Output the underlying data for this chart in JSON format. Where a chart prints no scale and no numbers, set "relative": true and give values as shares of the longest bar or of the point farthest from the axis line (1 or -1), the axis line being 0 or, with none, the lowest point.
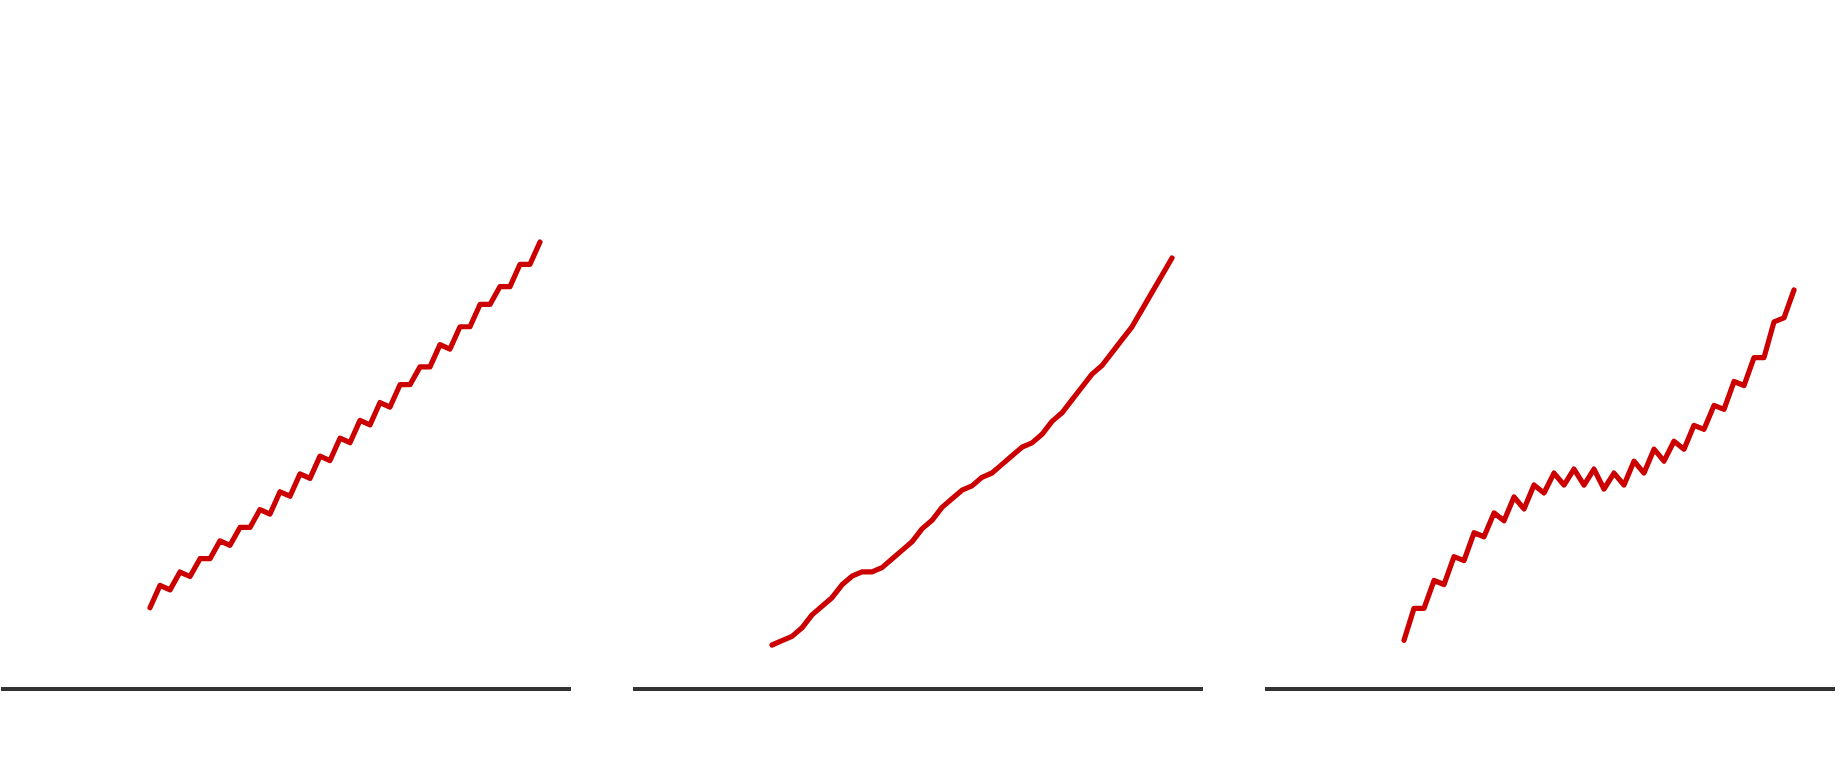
{
  "chart_data": [
    {
      "type": "line",
      "relative": true,
      "categories": [
        null,
        null,
        null,
        null,
        null,
        null,
        null,
        null,
        null,
        null,
        null,
        null,
        null,
        null,
        null,
        null,
        null,
        null,
        null,
        null,
        null,
        null,
        null,
        null,
        null,
        null,
        null,
        null,
        null,
        null,
        null,
        null,
        null,
        null,
        null,
        null,
        null,
        null,
        null,
        null,
        null,
        null,
        null,
        null,
        null,
        null,
        null,
        null,
        null,
        null,
        null,
        null,
        null,
        null,
        null,
        null,
        null,
        null
      ],
      "series": [
        {
          "color": "#cc0000",
          "values": [
            null,
            null,
            null,
            null,
            null,
            null,
            null,
            null,
            null,
            null,
            null,
            null,
            null,
            null,
            null,
            0.18,
            0.23,
            0.22,
            0.26,
            0.25,
            0.29,
            0.29,
            0.33,
            0.32,
            0.36,
            0.36,
            0.4,
            0.39,
            0.44,
            0.43,
            0.48,
            0.47,
            0.52,
            0.51,
            0.56,
            0.55,
            0.6,
            0.59,
            0.64,
            0.63,
            0.68,
            0.68,
            0.72,
            0.72,
            0.77,
            0.76,
            0.81,
            0.81,
            0.86,
            0.86,
            0.9,
            0.9,
            0.95,
            0.95,
            1.0,
            null,
            null,
            null
          ]
        }
      ]
    },
    {
      "type": "line",
      "relative": true,
      "categories": [
        null,
        null,
        null,
        null,
        null,
        null,
        null,
        null,
        null,
        null,
        null,
        null,
        null,
        null,
        null,
        null,
        null,
        null,
        null,
        null,
        null,
        null,
        null,
        null,
        null,
        null,
        null,
        null,
        null,
        null,
        null,
        null,
        null,
        null,
        null,
        null,
        null,
        null,
        null,
        null,
        null,
        null,
        null,
        null,
        null,
        null,
        null,
        null,
        null,
        null,
        null,
        null,
        null,
        null,
        null,
        null,
        null,
        null
      ],
      "series": [
        {
          "color": "#cc0000",
          "values": [
            null,
            null,
            null,
            null,
            null,
            null,
            null,
            null,
            null,
            null,
            null,
            null,
            null,
            null,
            0.1,
            0.11,
            0.12,
            0.14,
            0.17,
            0.19,
            0.21,
            0.24,
            0.26,
            0.27,
            0.27,
            0.28,
            0.3,
            0.32,
            0.34,
            0.37,
            0.39,
            0.42,
            0.44,
            0.46,
            0.47,
            0.49,
            0.5,
            0.52,
            0.54,
            0.56,
            0.57,
            0.59,
            0.62,
            0.64,
            0.67,
            0.7,
            0.73,
            0.75,
            0.78,
            0.81,
            0.84,
            0.88,
            0.92,
            0.96,
            1.0,
            null,
            null,
            null
          ]
        }
      ]
    },
    {
      "type": "line",
      "relative": true,
      "categories": [
        null,
        null,
        null,
        null,
        null,
        null,
        null,
        null,
        null,
        null,
        null,
        null,
        null,
        null,
        null,
        null,
        null,
        null,
        null,
        null,
        null,
        null,
        null,
        null,
        null,
        null,
        null,
        null,
        null,
        null,
        null,
        null,
        null,
        null,
        null,
        null,
        null,
        null,
        null,
        null,
        null,
        null,
        null,
        null,
        null,
        null,
        null,
        null,
        null,
        null,
        null,
        null,
        null,
        null,
        null,
        null,
        null,
        null
      ],
      "series": [
        {
          "color": "#cc0000",
          "values": [
            null,
            null,
            null,
            null,
            null,
            null,
            null,
            null,
            null,
            null,
            null,
            null,
            null,
            null,
            0.12,
            0.2,
            0.2,
            0.27,
            0.26,
            0.33,
            0.32,
            0.39,
            0.38,
            0.44,
            0.42,
            0.48,
            0.45,
            0.51,
            0.49,
            0.54,
            0.51,
            0.55,
            0.51,
            0.55,
            0.5,
            0.54,
            0.51,
            0.57,
            0.54,
            0.6,
            0.57,
            0.62,
            0.6,
            0.66,
            0.65,
            0.71,
            0.7,
            0.77,
            0.76,
            0.83,
            0.83,
            0.92,
            0.93,
            1.0,
            null,
            null,
            null,
            null
          ]
        }
      ]
    }
  ]
}
